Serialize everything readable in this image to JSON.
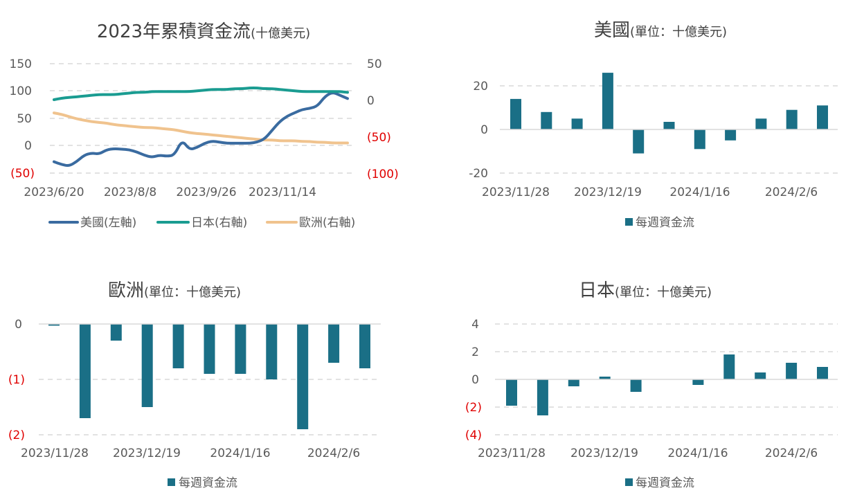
{
  "colors": {
    "us": "#3a6ba0",
    "japan": "#1a9c91",
    "europe": "#f0c38e",
    "bar": "#1a6f86",
    "negative": "#e00000"
  },
  "chart_data": [
    {
      "type": "line",
      "title": "2023年累積資金流",
      "subtitle": "(十億美元)",
      "x_ticks": [
        "2023/6/20",
        "2023/8/8",
        "2023/9/26",
        "2023/11/14"
      ],
      "y_left": {
        "ticks": [
          "150",
          "100",
          "50",
          "0",
          "(50)"
        ],
        "lim": [
          -50,
          150
        ]
      },
      "y_right": {
        "ticks": [
          "50",
          "0",
          "(50)",
          "(100)"
        ],
        "lim": [
          -100,
          50
        ]
      },
      "series": [
        {
          "name": "美國(左軸)",
          "axis": "left",
          "color_key": "us",
          "values": [
            -30,
            -35,
            -38,
            -30,
            -18,
            -14,
            -16,
            -8,
            -6,
            -7,
            -8,
            -12,
            -18,
            -22,
            -18,
            -20,
            -18,
            10,
            -8,
            -4,
            4,
            8,
            6,
            4,
            4,
            4,
            4,
            6,
            12,
            28,
            44,
            54,
            60,
            66,
            68,
            72,
            90,
            98,
            92,
            86
          ]
        },
        {
          "name": "日本(右軸)",
          "axis": "right",
          "color_key": "japan",
          "values": [
            0,
            2,
            3,
            4,
            5,
            6,
            7,
            7,
            7,
            8,
            9,
            10,
            10,
            11,
            11,
            11,
            11,
            11,
            11,
            12,
            13,
            14,
            14,
            14,
            15,
            15,
            16,
            16,
            15,
            15,
            14,
            13,
            12,
            11,
            11,
            11,
            11,
            11,
            11,
            10
          ]
        },
        {
          "name": "歐洲(右軸)",
          "axis": "right",
          "color_key": "europe",
          "values": [
            -18,
            -20,
            -23,
            -26,
            -28,
            -30,
            -31,
            -32,
            -34,
            -35,
            -36,
            -37,
            -38,
            -38,
            -39,
            -40,
            -41,
            -43,
            -45,
            -46,
            -47,
            -48,
            -49,
            -50,
            -51,
            -52,
            -53,
            -54,
            -55,
            -55,
            -56,
            -56,
            -56,
            -57,
            -57,
            -58,
            -58,
            -59,
            -59,
            -59
          ]
        }
      ]
    },
    {
      "type": "bar",
      "title": "美國",
      "subtitle": "(單位：十億美元)",
      "x_ticks": [
        "2023/11/28",
        "2023/12/19",
        "2024/1/16",
        "2024/2/6"
      ],
      "y_ticks": [
        "20",
        "0",
        "-20"
      ],
      "ylim": [
        -20,
        20
      ],
      "values": [
        14,
        8,
        5,
        26,
        -11,
        3.5,
        -9,
        -5,
        5,
        9,
        11
      ],
      "legend": "每週資金流"
    },
    {
      "type": "bar",
      "title": "歐洲",
      "subtitle": "(單位：十億美元)",
      "x_ticks": [
        "2023/11/28",
        "2023/12/19",
        "2024/1/16",
        "2024/2/6"
      ],
      "y_ticks": [
        "0",
        "(1)",
        "(2)"
      ],
      "ylim": [
        -2,
        0
      ],
      "values": [
        -0.03,
        -1.7,
        -0.3,
        -1.5,
        -0.8,
        -0.9,
        -0.9,
        -1.0,
        -1.9,
        -0.7,
        -0.8
      ],
      "legend": "每週資金流"
    },
    {
      "type": "bar",
      "title": "日本",
      "subtitle": "(單位：十億美元)",
      "x_ticks": [
        "2023/11/28",
        "2023/12/19",
        "2024/1/16",
        "2024/2/6"
      ],
      "y_ticks": [
        "4",
        "2",
        "0",
        "(2)",
        "(4)"
      ],
      "ylim": [
        -4,
        4
      ],
      "values": [
        -1.9,
        -2.6,
        -0.5,
        0.2,
        -0.9,
        0,
        -0.4,
        1.8,
        0.5,
        1.2,
        0.9
      ],
      "legend": "每週資金流"
    }
  ]
}
